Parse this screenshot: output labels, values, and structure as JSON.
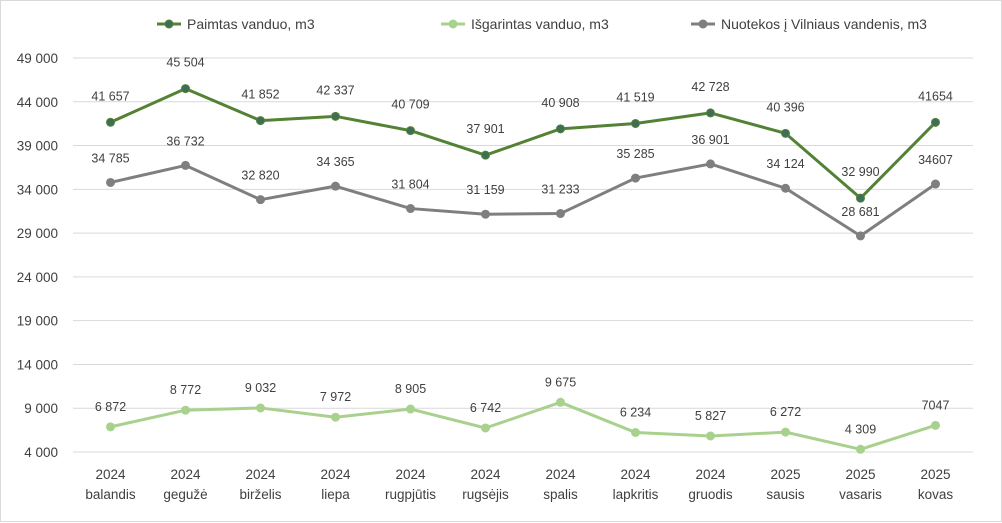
{
  "chart_data": {
    "type": "line",
    "title": "",
    "xlabel": "",
    "ylabel": "",
    "categories": [
      [
        "2024",
        "balandis"
      ],
      [
        "2024",
        "gegužė"
      ],
      [
        "2024",
        "birželis"
      ],
      [
        "2024",
        "liepa"
      ],
      [
        "2024",
        "rugpjūtis"
      ],
      [
        "2024",
        "rugsėjis"
      ],
      [
        "2024",
        "spalis"
      ],
      [
        "2024",
        "lapkritis"
      ],
      [
        "2024",
        "gruodis"
      ],
      [
        "2025",
        "sausis"
      ],
      [
        "2025",
        "vasaris"
      ],
      [
        "2025",
        "kovas"
      ]
    ],
    "ylim": [
      4000,
      49000
    ],
    "yticks": [
      4000,
      9000,
      14000,
      19000,
      24000,
      29000,
      34000,
      39000,
      44000,
      49000
    ],
    "ytick_labels": [
      "4 000",
      "9 000",
      "14 000",
      "19 000",
      "24 000",
      "29 000",
      "34 000",
      "39 000",
      "44 000",
      "49 000"
    ],
    "grid": true,
    "legend_position": "top",
    "series": [
      {
        "name": "Paimtas vanduo, m3",
        "color": "#548235",
        "marker_color": "#3e6e57",
        "values": [
          41657,
          45504,
          41852,
          42337,
          40709,
          37901,
          40908,
          41519,
          42728,
          40396,
          32990,
          41654
        ],
        "labels": [
          "41 657",
          "45 504",
          "41 852",
          "42 337",
          "40 709",
          "37 901",
          "40 908",
          "41 519",
          "42 728",
          "40 396",
          "32 990",
          "41654"
        ]
      },
      {
        "name": "Išgarintas vanduo, m3",
        "color": "#a9d18e",
        "marker_color": "#a9d18e",
        "values": [
          6872,
          8772,
          9032,
          7972,
          8905,
          6742,
          9675,
          6234,
          5827,
          6272,
          4309,
          7047
        ],
        "labels": [
          "6 872",
          "8 772",
          "9 032",
          "7 972",
          "8 905",
          "6 742",
          "9 675",
          "6 234",
          "5 827",
          "6 272",
          "4 309",
          "7047"
        ]
      },
      {
        "name": "Nuotekos į Vilniaus vandenis, m3",
        "color": "#7f7f7f",
        "marker_color": "#7f7f7f",
        "values": [
          34785,
          36732,
          32820,
          34365,
          31804,
          31159,
          31233,
          35285,
          36901,
          34124,
          28681,
          34607
        ],
        "labels": [
          "34 785",
          "36 732",
          "32 820",
          "34 365",
          "31 804",
          "31 159",
          "31 233",
          "35 285",
          "36 901",
          "34 124",
          "28 681",
          "34607"
        ]
      }
    ]
  }
}
